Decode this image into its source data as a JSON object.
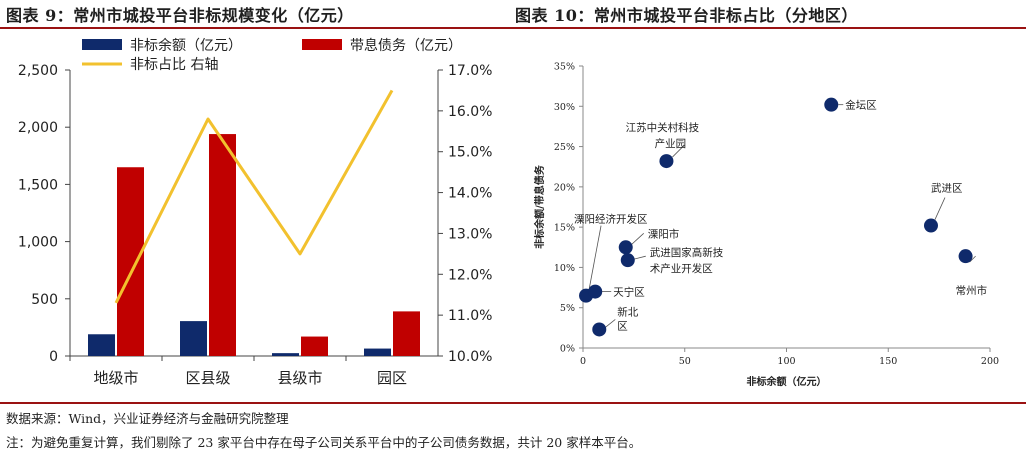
{
  "header": {
    "left_title": "图表 9：常州市城投平台非标规模变化（亿元）",
    "right_title": "图表 10：常州市城投平台非标占比（分地区）"
  },
  "footer": {
    "source": "数据来源：Wind，兴业证券经济与金融研究院整理",
    "note": "注：为避免重复计算，我们剔除了 23 家平台中存在母子公司关系平台中的子公司债务数据，共计 20 家样本平台。"
  },
  "colors": {
    "navy": "#0f2a6b",
    "red": "#c00000",
    "gold": "#f2c12e",
    "dot": "#0f2a6b"
  },
  "chart_data": [
    {
      "type": "bar",
      "categories": [
        "地级市",
        "区县级",
        "县级市",
        "园区"
      ],
      "series": [
        {
          "name": "非标余额（亿元）",
          "kind": "bar",
          "axis": "left",
          "color": "#0f2a6b",
          "values": [
            190,
            305,
            25,
            65
          ]
        },
        {
          "name": "带息债务（亿元）",
          "kind": "bar",
          "axis": "left",
          "color": "#c00000",
          "values": [
            1650,
            1940,
            170,
            390
          ]
        },
        {
          "name": "非标占比 右轴",
          "kind": "line",
          "axis": "right",
          "color": "#f2c12e",
          "values": [
            11.3,
            15.8,
            12.5,
            16.5
          ]
        }
      ],
      "ylim": [
        0,
        2500
      ],
      "yticks": [
        "0",
        "500",
        "1,000",
        "1,500",
        "2,000",
        "2,500"
      ],
      "ylim_right": [
        10.0,
        17.0
      ],
      "yticks_right": [
        "10.0%",
        "11.0%",
        "12.0%",
        "13.0%",
        "14.0%",
        "15.0%",
        "16.0%",
        "17.0%"
      ],
      "legend": "top"
    },
    {
      "type": "scatter",
      "xlabel": "非标余额（亿元）",
      "ylabel": "非标余额/带息债务",
      "xlim": [
        0,
        200
      ],
      "ylim": [
        0,
        35
      ],
      "xticks": [
        "0",
        "50",
        "100",
        "150",
        "200"
      ],
      "yticks": [
        "0%",
        "5%",
        "10%",
        "15%",
        "20%",
        "25%",
        "30%",
        "35%"
      ],
      "points": [
        {
          "label": "金坛区",
          "x": 122,
          "y": 30.2
        },
        {
          "label": "江苏中关村科技产业园",
          "x": 41,
          "y": 23.2
        },
        {
          "label": "武进区",
          "x": 171,
          "y": 15.2
        },
        {
          "label": "常州市",
          "x": 188,
          "y": 11.4
        },
        {
          "label": "溧阳经济开发区",
          "x": 1.5,
          "y": 6.5
        },
        {
          "label": "溧阳市",
          "x": 21,
          "y": 12.5
        },
        {
          "label": "武进国家高新技术产业开发区",
          "x": 22,
          "y": 10.9
        },
        {
          "label": "天宁区",
          "x": 6,
          "y": 7.0
        },
        {
          "label": "新北区",
          "x": 8,
          "y": 2.3
        }
      ]
    }
  ]
}
